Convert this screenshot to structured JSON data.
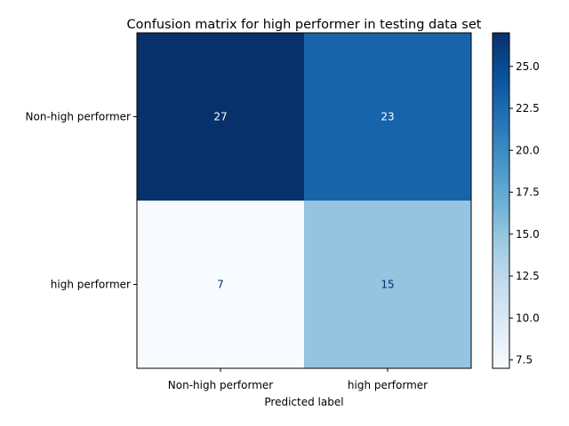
{
  "chart_data": {
    "type": "heatmap",
    "title": "Confusion matrix for high performer in testing data set",
    "xlabel": "Predicted label",
    "ylabel": "",
    "row_labels": [
      "Non-high performer",
      "high performer"
    ],
    "col_labels": [
      "Non-high performer",
      "high performer"
    ],
    "values": [
      [
        27,
        23
      ],
      [
        7,
        15
      ]
    ],
    "colormap": "Blues",
    "color_range": [
      7,
      27
    ],
    "colorbar_ticks": [
      "7.5",
      "10.0",
      "12.5",
      "15.0",
      "17.5",
      "20.0",
      "22.5",
      "25.0"
    ],
    "colorbar_tick_values": [
      7.5,
      10.0,
      12.5,
      15.0,
      17.5,
      20.0,
      22.5,
      25.0
    ]
  }
}
